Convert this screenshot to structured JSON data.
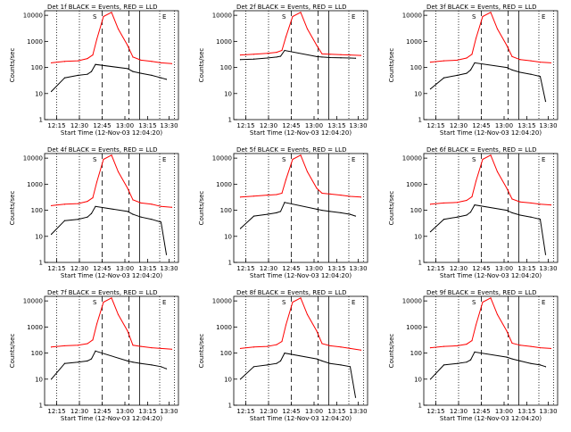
{
  "ylabel": "Counts/sec",
  "xlabel": "Start Time (12-Nov-03 12:04:20)",
  "colors": {
    "events": "#000000",
    "lld": "#ff0000"
  },
  "ylim": [
    1,
    15000
  ],
  "yticks": [
    {
      "v": 1,
      "label": "1"
    },
    {
      "v": 10,
      "label": "10"
    },
    {
      "v": 100,
      "label": "100"
    },
    {
      "v": 1000,
      "label": "1000"
    },
    {
      "v": 10000,
      "label": "10000"
    }
  ],
  "chart_data": [
    {
      "type": "line",
      "title": "Det 1f BLACK = Events, RED = LLD",
      "xticks": [
        "12:15",
        "12:30",
        "12:45",
        "13:00",
        "13:15",
        "13:30"
      ],
      "markers": [
        "S",
        "E"
      ],
      "series": [
        {
          "name": "Events",
          "x": [
            0.05,
            0.15,
            0.25,
            0.32,
            0.35,
            0.38,
            0.62,
            0.66,
            0.72,
            0.8,
            0.87,
            0.91
          ],
          "y": [
            12,
            40,
            50,
            55,
            70,
            130,
            90,
            70,
            60,
            50,
            40,
            35
          ]
        },
        {
          "name": "LLD",
          "x": [
            0.05,
            0.15,
            0.25,
            0.32,
            0.36,
            0.39,
            0.44,
            0.5,
            0.55,
            0.62,
            0.66,
            0.72,
            0.8,
            0.87,
            0.95
          ],
          "y": [
            150,
            170,
            180,
            220,
            300,
            1200,
            9000,
            13000,
            3000,
            700,
            250,
            190,
            170,
            150,
            140
          ]
        }
      ]
    },
    {
      "type": "line",
      "title": "Det 2f BLACK = Events, RED = LLD",
      "xticks": [
        "12:15",
        "12:30",
        "12:45",
        "13:00",
        "13:15",
        "13:30"
      ],
      "markers": [
        "S",
        "E"
      ],
      "series": [
        {
          "name": "Events",
          "x": [
            0.05,
            0.15,
            0.25,
            0.32,
            0.35,
            0.38,
            0.62,
            0.66,
            0.72,
            0.8,
            0.87,
            0.91
          ],
          "y": [
            200,
            210,
            230,
            250,
            270,
            450,
            260,
            250,
            240,
            235,
            230,
            225
          ]
        },
        {
          "name": "LLD",
          "x": [
            0.05,
            0.15,
            0.25,
            0.32,
            0.36,
            0.39,
            0.44,
            0.5,
            0.55,
            0.62,
            0.66,
            0.72,
            0.8,
            0.87,
            0.95
          ],
          "y": [
            300,
            320,
            350,
            380,
            450,
            1500,
            9000,
            13000,
            3000,
            700,
            330,
            320,
            310,
            300,
            290
          ]
        }
      ]
    },
    {
      "type": "line",
      "title": "Det 3f BLACK = Events, RED = LLD",
      "xticks": [
        "12:15",
        "12:30",
        "12:45",
        "13:00",
        "13:15",
        "13:30"
      ],
      "markers": [
        "S",
        "E"
      ],
      "series": [
        {
          "name": "Events",
          "x": [
            0.05,
            0.15,
            0.25,
            0.32,
            0.35,
            0.38,
            0.62,
            0.66,
            0.72,
            0.8,
            0.87,
            0.91
          ],
          "y": [
            15,
            40,
            50,
            60,
            80,
            150,
            100,
            80,
            65,
            55,
            45,
            5
          ]
        },
        {
          "name": "LLD",
          "x": [
            0.05,
            0.15,
            0.25,
            0.32,
            0.36,
            0.39,
            0.44,
            0.5,
            0.55,
            0.62,
            0.66,
            0.72,
            0.8,
            0.87,
            0.95
          ],
          "y": [
            160,
            180,
            190,
            230,
            320,
            1300,
            9000,
            13000,
            3000,
            700,
            260,
            200,
            180,
            160,
            150
          ]
        }
      ]
    },
    {
      "type": "line",
      "title": "Det 4f BLACK = Events, RED = LLD",
      "xticks": [
        "12:15",
        "12:30",
        "12:45",
        "13:00",
        "13:15",
        "13:30"
      ],
      "markers": [
        "S",
        "E"
      ],
      "series": [
        {
          "name": "Events",
          "x": [
            0.05,
            0.15,
            0.25,
            0.32,
            0.35,
            0.38,
            0.62,
            0.66,
            0.72,
            0.8,
            0.87,
            0.91
          ],
          "y": [
            12,
            40,
            45,
            55,
            75,
            140,
            90,
            70,
            55,
            45,
            35,
            2
          ]
        },
        {
          "name": "LLD",
          "x": [
            0.05,
            0.15,
            0.25,
            0.32,
            0.36,
            0.39,
            0.44,
            0.5,
            0.55,
            0.62,
            0.66,
            0.72,
            0.8,
            0.87,
            0.95
          ],
          "y": [
            150,
            170,
            180,
            220,
            300,
            1200,
            9000,
            13000,
            3000,
            700,
            250,
            190,
            170,
            140,
            130
          ]
        }
      ]
    },
    {
      "type": "line",
      "title": "Det 5f BLACK = Events, RED = LLD",
      "xticks": [
        "12:15",
        "12:30",
        "12:45",
        "13:00",
        "13:15",
        "13:30"
      ],
      "markers": [
        "S",
        "E"
      ],
      "series": [
        {
          "name": "Events",
          "x": [
            0.05,
            0.15,
            0.25,
            0.32,
            0.35,
            0.38,
            0.62,
            0.66,
            0.72,
            0.8,
            0.87,
            0.91
          ],
          "y": [
            20,
            60,
            70,
            80,
            90,
            200,
            110,
            100,
            90,
            80,
            70,
            60
          ]
        },
        {
          "name": "LLD",
          "x": [
            0.05,
            0.15,
            0.25,
            0.32,
            0.36,
            0.39,
            0.44,
            0.5,
            0.55,
            0.62,
            0.66,
            0.72,
            0.8,
            0.87,
            0.95
          ],
          "y": [
            320,
            350,
            380,
            400,
            450,
            1500,
            9000,
            13000,
            3000,
            700,
            450,
            420,
            380,
            340,
            320
          ]
        }
      ]
    },
    {
      "type": "line",
      "title": "Det 6f BLACK = Events, RED = LLD",
      "xticks": [
        "12:15",
        "12:30",
        "12:45",
        "13:00",
        "13:15",
        "13:30"
      ],
      "markers": [
        "S",
        "E"
      ],
      "series": [
        {
          "name": "Events",
          "x": [
            0.05,
            0.15,
            0.25,
            0.32,
            0.35,
            0.38,
            0.62,
            0.66,
            0.72,
            0.8,
            0.87,
            0.91
          ],
          "y": [
            15,
            45,
            55,
            65,
            85,
            160,
            100,
            80,
            65,
            55,
            45,
            2
          ]
        },
        {
          "name": "LLD",
          "x": [
            0.05,
            0.15,
            0.25,
            0.32,
            0.36,
            0.39,
            0.44,
            0.5,
            0.55,
            0.62,
            0.66,
            0.72,
            0.8,
            0.87,
            0.95
          ],
          "y": [
            170,
            190,
            200,
            240,
            330,
            1300,
            9000,
            13000,
            3000,
            700,
            270,
            210,
            190,
            170,
            160
          ]
        }
      ]
    },
    {
      "type": "line",
      "title": "Det 7f BLACK = Events, RED = LLD",
      "xticks": [
        "12:15",
        "12:30",
        "12:45",
        "13:00",
        "13:15",
        "13:30"
      ],
      "markers": [
        "S",
        "E"
      ],
      "series": [
        {
          "name": "Events",
          "x": [
            0.05,
            0.15,
            0.25,
            0.32,
            0.35,
            0.38,
            0.62,
            0.66,
            0.72,
            0.8,
            0.87,
            0.91
          ],
          "y": [
            10,
            40,
            45,
            50,
            60,
            120,
            50,
            45,
            40,
            35,
            30,
            25
          ]
        },
        {
          "name": "LLD",
          "x": [
            0.05,
            0.15,
            0.25,
            0.32,
            0.36,
            0.39,
            0.44,
            0.5,
            0.55,
            0.62,
            0.66,
            0.72,
            0.8,
            0.87,
            0.95
          ],
          "y": [
            170,
            190,
            200,
            230,
            320,
            1300,
            9000,
            13000,
            3000,
            700,
            200,
            180,
            160,
            150,
            140
          ]
        }
      ]
    },
    {
      "type": "line",
      "title": "Det 8f BLACK = Events, RED = LLD",
      "xticks": [
        "12:15",
        "12:30",
        "12:45",
        "13:00",
        "13:15",
        "13:30"
      ],
      "markers": [
        "S",
        "E"
      ],
      "series": [
        {
          "name": "Events",
          "x": [
            0.05,
            0.15,
            0.25,
            0.32,
            0.35,
            0.38,
            0.62,
            0.66,
            0.72,
            0.8,
            0.87,
            0.91
          ],
          "y": [
            10,
            30,
            35,
            40,
            50,
            100,
            60,
            50,
            40,
            35,
            30,
            2
          ]
        },
        {
          "name": "LLD",
          "x": [
            0.05,
            0.15,
            0.25,
            0.32,
            0.36,
            0.39,
            0.44,
            0.5,
            0.55,
            0.62,
            0.66,
            0.72,
            0.8,
            0.87,
            0.95
          ],
          "y": [
            150,
            170,
            180,
            210,
            280,
            1200,
            9000,
            13000,
            3000,
            700,
            230,
            190,
            170,
            150,
            130
          ]
        }
      ]
    },
    {
      "type": "line",
      "title": "Det 9f BLACK = Events, RED = LLD",
      "xticks": [
        "12:15",
        "12:30",
        "12:45",
        "13:00",
        "13:15",
        "13:30"
      ],
      "markers": [
        "S",
        "E"
      ],
      "series": [
        {
          "name": "Events",
          "x": [
            0.05,
            0.15,
            0.25,
            0.32,
            0.35,
            0.38,
            0.62,
            0.66,
            0.72,
            0.8,
            0.87,
            0.91
          ],
          "y": [
            10,
            35,
            40,
            45,
            55,
            110,
            70,
            60,
            50,
            40,
            35,
            30
          ]
        },
        {
          "name": "LLD",
          "x": [
            0.05,
            0.15,
            0.25,
            0.32,
            0.36,
            0.39,
            0.44,
            0.5,
            0.55,
            0.62,
            0.66,
            0.72,
            0.8,
            0.87,
            0.95
          ],
          "y": [
            160,
            180,
            190,
            220,
            300,
            1200,
            9000,
            13000,
            3000,
            700,
            240,
            200,
            180,
            160,
            150
          ]
        }
      ]
    }
  ]
}
